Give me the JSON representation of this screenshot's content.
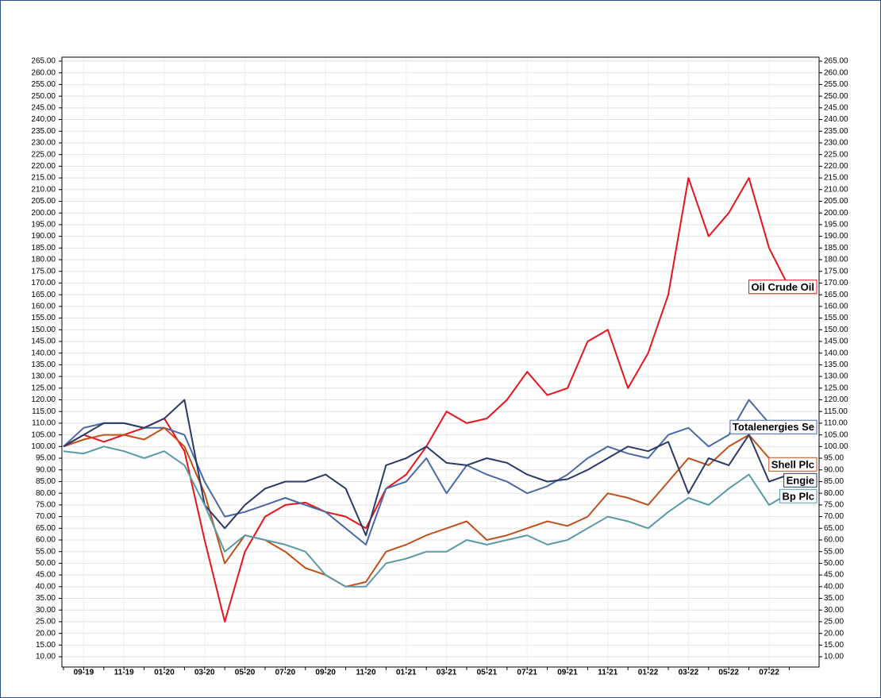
{
  "chart_data": {
    "type": "line",
    "categories": [
      null,
      "09-19",
      null,
      "11-19",
      null,
      "01-20",
      null,
      "03-20",
      null,
      "05-20",
      null,
      "07-20",
      null,
      "09-20",
      null,
      "11-20",
      null,
      "01-21",
      null,
      "03-21",
      null,
      "05-21",
      null,
      "07-21",
      null,
      "09-21",
      null,
      "11-21",
      null,
      "01-22",
      null,
      "03-22",
      null,
      "05-22",
      null,
      "07-22",
      null
    ],
    "series": [
      {
        "name": "Oil Crude Oil",
        "color": "#e8141c",
        "values": [
          100,
          105,
          102,
          105,
          108,
          112,
          98,
          60,
          25,
          55,
          70,
          75,
          76,
          72,
          70,
          65,
          82,
          88,
          100,
          115,
          110,
          112,
          120,
          132,
          122,
          125,
          145,
          150,
          125,
          140,
          165,
          215,
          190,
          200,
          215,
          185,
          168
        ]
      },
      {
        "name": "Totalenergies Se",
        "color": "#4a68a8",
        "values": [
          100,
          108,
          110,
          110,
          108,
          108,
          105,
          85,
          70,
          72,
          75,
          78,
          75,
          72,
          65,
          58,
          82,
          85,
          95,
          80,
          92,
          88,
          85,
          80,
          83,
          88,
          95,
          100,
          97,
          95,
          105,
          108,
          100,
          105,
          120,
          110,
          108
        ]
      },
      {
        "name": "Shell Plc",
        "color": "#c0501a",
        "values": [
          100,
          103,
          105,
          105,
          103,
          108,
          100,
          80,
          50,
          62,
          60,
          55,
          48,
          45,
          40,
          42,
          55,
          58,
          62,
          65,
          68,
          60,
          62,
          65,
          68,
          66,
          70,
          80,
          78,
          75,
          85,
          95,
          92,
          100,
          105,
          95,
          92
        ]
      },
      {
        "name": "Engie",
        "color": "#2b3a66",
        "values": [
          100,
          105,
          110,
          110,
          108,
          112,
          120,
          75,
          65,
          75,
          82,
          85,
          85,
          88,
          82,
          62,
          92,
          95,
          100,
          93,
          92,
          95,
          93,
          88,
          85,
          86,
          90,
          95,
          100,
          98,
          102,
          80,
          95,
          92,
          105,
          85,
          88
        ]
      },
      {
        "name": "Bp Plc",
        "color": "#5a9aa8",
        "values": [
          98,
          97,
          100,
          98,
          95,
          98,
          92,
          75,
          55,
          62,
          60,
          58,
          55,
          45,
          40,
          40,
          50,
          52,
          55,
          55,
          60,
          58,
          60,
          62,
          58,
          60,
          65,
          70,
          68,
          65,
          72,
          78,
          75,
          82,
          88,
          75,
          80
        ]
      }
    ],
    "ylim": [
      5.6,
      266.7
    ],
    "yticks": [
      {
        "value": 10,
        "label": "10.00"
      },
      {
        "value": 15,
        "label": "15.00"
      },
      {
        "value": 20,
        "label": "20.00"
      },
      {
        "value": 25,
        "label": "25.00"
      },
      {
        "value": 30,
        "label": "30.00"
      },
      {
        "value": 35,
        "label": "35.00"
      },
      {
        "value": 40,
        "label": "40.00"
      },
      {
        "value": 45,
        "label": "45.00"
      },
      {
        "value": 50,
        "label": "50.00"
      },
      {
        "value": 55,
        "label": "55.00"
      },
      {
        "value": 60,
        "label": "60.00"
      },
      {
        "value": 65,
        "label": "65.00"
      },
      {
        "value": 70,
        "label": "70.00"
      },
      {
        "value": 75,
        "label": "75.00"
      },
      {
        "value": 80,
        "label": "80.00"
      },
      {
        "value": 85,
        "label": "85.00"
      },
      {
        "value": 90,
        "label": "90.00"
      },
      {
        "value": 95,
        "label": "95.00"
      },
      {
        "value": 100,
        "label": "100.00"
      },
      {
        "value": 105,
        "label": "105.00"
      },
      {
        "value": 110,
        "label": "110.00"
      },
      {
        "value": 115,
        "label": "115.00"
      },
      {
        "value": 120,
        "label": "120.00"
      },
      {
        "value": 125,
        "label": "125.00"
      },
      {
        "value": 130,
        "label": "130.00"
      },
      {
        "value": 135,
        "label": "135.00"
      },
      {
        "value": 140,
        "label": "140.00"
      },
      {
        "value": 145,
        "label": "145.00"
      },
      {
        "value": 150,
        "label": "150.00"
      },
      {
        "value": 155,
        "label": "155.00"
      },
      {
        "value": 160,
        "label": "160.00"
      },
      {
        "value": 165,
        "label": "165.00"
      },
      {
        "value": 170,
        "label": "170.00"
      },
      {
        "value": 175,
        "label": "175.00"
      },
      {
        "value": 180,
        "label": "180.00"
      },
      {
        "value": 185,
        "label": "185.00"
      },
      {
        "value": 190,
        "label": "190.00"
      },
      {
        "value": 195,
        "label": "195.00"
      },
      {
        "value": 200,
        "label": "200.00"
      },
      {
        "value": 205,
        "label": "205.00"
      },
      {
        "value": 210,
        "label": "210.00"
      },
      {
        "value": 215,
        "label": "215.00"
      },
      {
        "value": 220,
        "label": "220.00"
      },
      {
        "value": 225,
        "label": "225.00"
      },
      {
        "value": 230,
        "label": "230.00"
      },
      {
        "value": 235,
        "label": "235.00"
      },
      {
        "value": 240,
        "label": "240.00"
      },
      {
        "value": 245,
        "label": "245.00"
      },
      {
        "value": 250,
        "label": "250.00"
      },
      {
        "value": 255,
        "label": "255.00"
      },
      {
        "value": 260,
        "label": "260.00"
      },
      {
        "value": 265,
        "label": "265.00"
      }
    ],
    "grid": true
  }
}
